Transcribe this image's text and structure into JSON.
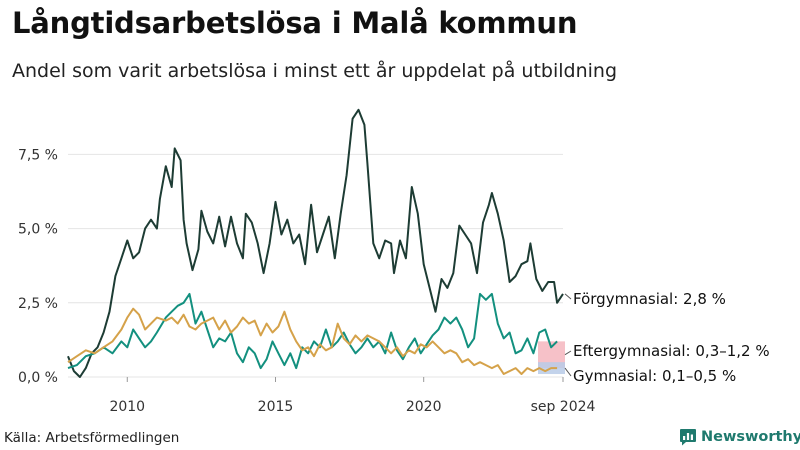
{
  "title": "Långtidsarbetslösa i Malå kommun",
  "subtitle": "Andel som varit arbetslösa i minst ett år uppdelat på utbildning",
  "source": "Källa: Arbetsförmedlingen",
  "brand": "Newsworthy",
  "colors": {
    "forgymnasial": "#1d3c34",
    "eftergymnasial": "#13907f",
    "gymnasial": "#d5a24a",
    "range_eftergymnasial": "#f4b6be",
    "range_gymnasial": "#b9cbe8",
    "grid": "#e4e4e4",
    "brand": "#1f7a6e"
  },
  "chart_data": {
    "type": "line",
    "x_unit": "year (decimal, monthly)",
    "xlim": [
      2008.0,
      2024.7
    ],
    "ylim": [
      0,
      9.5
    ],
    "y_unit": "%",
    "y_ticks": [
      0,
      2.5,
      5,
      7.5
    ],
    "y_tick_labels": [
      "0,0 %",
      "2,5 %",
      "5,0 %",
      "7,5 %"
    ],
    "x_ticks": [
      2010,
      2015,
      2020,
      2024.7
    ],
    "x_tick_labels": [
      "2010",
      "2015",
      "2020",
      "sep 2024"
    ],
    "grid": true,
    "legend": "none (direct end labels)",
    "series": [
      {
        "name": "Förgymnasial",
        "end_label": "Förgymnasial: 2,8 %",
        "color_key": "forgymnasial",
        "points": [
          [
            2008.0,
            0.7
          ],
          [
            2008.2,
            0.2
          ],
          [
            2008.4,
            0.0
          ],
          [
            2008.6,
            0.3
          ],
          [
            2008.8,
            0.8
          ],
          [
            2009.0,
            1.0
          ],
          [
            2009.2,
            1.5
          ],
          [
            2009.4,
            2.2
          ],
          [
            2009.6,
            3.4
          ],
          [
            2009.8,
            4.0
          ],
          [
            2010.0,
            4.6
          ],
          [
            2010.2,
            4.0
          ],
          [
            2010.4,
            4.2
          ],
          [
            2010.6,
            5.0
          ],
          [
            2010.8,
            5.3
          ],
          [
            2011.0,
            5.0
          ],
          [
            2011.1,
            6.0
          ],
          [
            2011.3,
            7.1
          ],
          [
            2011.5,
            6.4
          ],
          [
            2011.6,
            7.7
          ],
          [
            2011.8,
            7.3
          ],
          [
            2011.9,
            5.3
          ],
          [
            2012.0,
            4.5
          ],
          [
            2012.2,
            3.6
          ],
          [
            2012.4,
            4.3
          ],
          [
            2012.5,
            5.6
          ],
          [
            2012.7,
            4.9
          ],
          [
            2012.9,
            4.5
          ],
          [
            2013.1,
            5.4
          ],
          [
            2013.3,
            4.4
          ],
          [
            2013.5,
            5.4
          ],
          [
            2013.7,
            4.5
          ],
          [
            2013.9,
            4.0
          ],
          [
            2014.0,
            5.5
          ],
          [
            2014.2,
            5.2
          ],
          [
            2014.4,
            4.5
          ],
          [
            2014.6,
            3.5
          ],
          [
            2014.8,
            4.5
          ],
          [
            2015.0,
            5.9
          ],
          [
            2015.2,
            4.8
          ],
          [
            2015.4,
            5.3
          ],
          [
            2015.6,
            4.5
          ],
          [
            2015.8,
            4.8
          ],
          [
            2016.0,
            3.8
          ],
          [
            2016.2,
            5.8
          ],
          [
            2016.4,
            4.2
          ],
          [
            2016.6,
            4.8
          ],
          [
            2016.8,
            5.4
          ],
          [
            2017.0,
            4.0
          ],
          [
            2017.2,
            5.5
          ],
          [
            2017.4,
            6.8
          ],
          [
            2017.6,
            8.7
          ],
          [
            2017.8,
            9.0
          ],
          [
            2018.0,
            8.5
          ],
          [
            2018.1,
            7.2
          ],
          [
            2018.3,
            4.5
          ],
          [
            2018.5,
            4.0
          ],
          [
            2018.7,
            4.6
          ],
          [
            2018.9,
            4.5
          ],
          [
            2019.0,
            3.5
          ],
          [
            2019.2,
            4.6
          ],
          [
            2019.4,
            4.0
          ],
          [
            2019.6,
            6.4
          ],
          [
            2019.8,
            5.5
          ],
          [
            2020.0,
            3.8
          ],
          [
            2020.2,
            3.0
          ],
          [
            2020.4,
            2.2
          ],
          [
            2020.6,
            3.3
          ],
          [
            2020.8,
            3.0
          ],
          [
            2021.0,
            3.5
          ],
          [
            2021.2,
            5.1
          ],
          [
            2021.4,
            4.8
          ],
          [
            2021.6,
            4.5
          ],
          [
            2021.8,
            3.5
          ],
          [
            2022.0,
            5.2
          ],
          [
            2022.2,
            5.8
          ],
          [
            2022.3,
            6.2
          ],
          [
            2022.5,
            5.5
          ],
          [
            2022.7,
            4.6
          ],
          [
            2022.9,
            3.2
          ],
          [
            2023.1,
            3.4
          ],
          [
            2023.3,
            3.8
          ],
          [
            2023.5,
            3.9
          ],
          [
            2023.6,
            4.5
          ],
          [
            2023.8,
            3.3
          ],
          [
            2024.0,
            2.9
          ],
          [
            2024.2,
            3.2
          ],
          [
            2024.4,
            3.2
          ],
          [
            2024.5,
            2.5
          ],
          [
            2024.7,
            2.8
          ]
        ]
      },
      {
        "name": "Eftergymnasial",
        "end_label": "Eftergymnasial: 0,3–1,2 %",
        "range": [
          0.3,
          1.2
        ],
        "color_key": "eftergymnasial",
        "range_color_key": "range_eftergymnasial",
        "points": [
          [
            2008.0,
            0.3
          ],
          [
            2008.3,
            0.4
          ],
          [
            2008.6,
            0.7
          ],
          [
            2008.9,
            0.8
          ],
          [
            2009.2,
            1.0
          ],
          [
            2009.5,
            0.8
          ],
          [
            2009.8,
            1.2
          ],
          [
            2010.0,
            1.0
          ],
          [
            2010.2,
            1.6
          ],
          [
            2010.4,
            1.3
          ],
          [
            2010.6,
            1.0
          ],
          [
            2010.8,
            1.2
          ],
          [
            2011.0,
            1.5
          ],
          [
            2011.3,
            2.0
          ],
          [
            2011.5,
            2.2
          ],
          [
            2011.7,
            2.4
          ],
          [
            2011.9,
            2.5
          ],
          [
            2012.1,
            2.8
          ],
          [
            2012.3,
            1.8
          ],
          [
            2012.5,
            2.2
          ],
          [
            2012.7,
            1.6
          ],
          [
            2012.9,
            1.0
          ],
          [
            2013.1,
            1.3
          ],
          [
            2013.3,
            1.2
          ],
          [
            2013.5,
            1.5
          ],
          [
            2013.7,
            0.8
          ],
          [
            2013.9,
            0.5
          ],
          [
            2014.1,
            1.0
          ],
          [
            2014.3,
            0.8
          ],
          [
            2014.5,
            0.3
          ],
          [
            2014.7,
            0.6
          ],
          [
            2014.9,
            1.2
          ],
          [
            2015.1,
            0.8
          ],
          [
            2015.3,
            0.4
          ],
          [
            2015.5,
            0.8
          ],
          [
            2015.7,
            0.3
          ],
          [
            2015.9,
            1.0
          ],
          [
            2016.1,
            0.8
          ],
          [
            2016.3,
            1.2
          ],
          [
            2016.5,
            1.0
          ],
          [
            2016.7,
            1.6
          ],
          [
            2016.9,
            1.0
          ],
          [
            2017.1,
            1.2
          ],
          [
            2017.3,
            1.5
          ],
          [
            2017.5,
            1.1
          ],
          [
            2017.7,
            0.8
          ],
          [
            2017.9,
            1.0
          ],
          [
            2018.1,
            1.3
          ],
          [
            2018.3,
            1.0
          ],
          [
            2018.5,
            1.2
          ],
          [
            2018.7,
            0.8
          ],
          [
            2018.9,
            1.5
          ],
          [
            2019.1,
            0.9
          ],
          [
            2019.3,
            0.6
          ],
          [
            2019.5,
            1.0
          ],
          [
            2019.7,
            1.3
          ],
          [
            2019.9,
            0.8
          ],
          [
            2020.1,
            1.1
          ],
          [
            2020.3,
            1.4
          ],
          [
            2020.5,
            1.6
          ],
          [
            2020.7,
            2.0
          ],
          [
            2020.9,
            1.8
          ],
          [
            2021.1,
            2.0
          ],
          [
            2021.3,
            1.6
          ],
          [
            2021.5,
            1.0
          ],
          [
            2021.7,
            1.3
          ],
          [
            2021.9,
            2.8
          ],
          [
            2022.1,
            2.6
          ],
          [
            2022.3,
            2.8
          ],
          [
            2022.5,
            1.8
          ],
          [
            2022.7,
            1.3
          ],
          [
            2022.9,
            1.5
          ],
          [
            2023.1,
            0.8
          ],
          [
            2023.3,
            0.9
          ],
          [
            2023.5,
            1.3
          ],
          [
            2023.7,
            0.8
          ],
          [
            2023.9,
            1.5
          ],
          [
            2024.1,
            1.6
          ],
          [
            2024.3,
            1.0
          ],
          [
            2024.5,
            1.2
          ]
        ]
      },
      {
        "name": "Gymnasial",
        "end_label": "Gymnasial: 0,1–0,5 %",
        "range": [
          0.1,
          0.5
        ],
        "color_key": "gymnasial",
        "range_color_key": "range_gymnasial",
        "points": [
          [
            2008.0,
            0.5
          ],
          [
            2008.3,
            0.7
          ],
          [
            2008.6,
            0.9
          ],
          [
            2008.9,
            0.8
          ],
          [
            2009.2,
            1.0
          ],
          [
            2009.5,
            1.2
          ],
          [
            2009.8,
            1.6
          ],
          [
            2010.0,
            2.0
          ],
          [
            2010.2,
            2.3
          ],
          [
            2010.4,
            2.1
          ],
          [
            2010.6,
            1.6
          ],
          [
            2010.8,
            1.8
          ],
          [
            2011.0,
            2.0
          ],
          [
            2011.3,
            1.9
          ],
          [
            2011.5,
            2.0
          ],
          [
            2011.7,
            1.8
          ],
          [
            2011.9,
            2.1
          ],
          [
            2012.1,
            1.7
          ],
          [
            2012.3,
            1.6
          ],
          [
            2012.5,
            1.8
          ],
          [
            2012.7,
            1.9
          ],
          [
            2012.9,
            2.0
          ],
          [
            2013.1,
            1.6
          ],
          [
            2013.3,
            1.9
          ],
          [
            2013.5,
            1.5
          ],
          [
            2013.7,
            1.7
          ],
          [
            2013.9,
            2.0
          ],
          [
            2014.1,
            1.8
          ],
          [
            2014.3,
            1.9
          ],
          [
            2014.5,
            1.4
          ],
          [
            2014.7,
            1.8
          ],
          [
            2014.9,
            1.5
          ],
          [
            2015.1,
            1.7
          ],
          [
            2015.3,
            2.2
          ],
          [
            2015.5,
            1.6
          ],
          [
            2015.7,
            1.2
          ],
          [
            2015.9,
            0.9
          ],
          [
            2016.1,
            1.0
          ],
          [
            2016.3,
            0.7
          ],
          [
            2016.5,
            1.1
          ],
          [
            2016.7,
            0.9
          ],
          [
            2016.9,
            1.0
          ],
          [
            2017.1,
            1.8
          ],
          [
            2017.3,
            1.3
          ],
          [
            2017.5,
            1.1
          ],
          [
            2017.7,
            1.4
          ],
          [
            2017.9,
            1.2
          ],
          [
            2018.1,
            1.4
          ],
          [
            2018.3,
            1.3
          ],
          [
            2018.5,
            1.2
          ],
          [
            2018.7,
            1.0
          ],
          [
            2018.9,
            0.8
          ],
          [
            2019.1,
            1.0
          ],
          [
            2019.3,
            0.7
          ],
          [
            2019.5,
            0.9
          ],
          [
            2019.7,
            0.8
          ],
          [
            2019.9,
            1.1
          ],
          [
            2020.1,
            1.0
          ],
          [
            2020.3,
            1.2
          ],
          [
            2020.5,
            1.0
          ],
          [
            2020.7,
            0.8
          ],
          [
            2020.9,
            0.9
          ],
          [
            2021.1,
            0.8
          ],
          [
            2021.3,
            0.5
          ],
          [
            2021.5,
            0.6
          ],
          [
            2021.7,
            0.4
          ],
          [
            2021.9,
            0.5
          ],
          [
            2022.1,
            0.4
          ],
          [
            2022.3,
            0.3
          ],
          [
            2022.5,
            0.4
          ],
          [
            2022.7,
            0.1
          ],
          [
            2022.9,
            0.2
          ],
          [
            2023.1,
            0.3
          ],
          [
            2023.3,
            0.1
          ],
          [
            2023.5,
            0.3
          ],
          [
            2023.7,
            0.2
          ],
          [
            2023.9,
            0.3
          ],
          [
            2024.1,
            0.2
          ],
          [
            2024.3,
            0.3
          ],
          [
            2024.5,
            0.3
          ]
        ]
      }
    ]
  }
}
